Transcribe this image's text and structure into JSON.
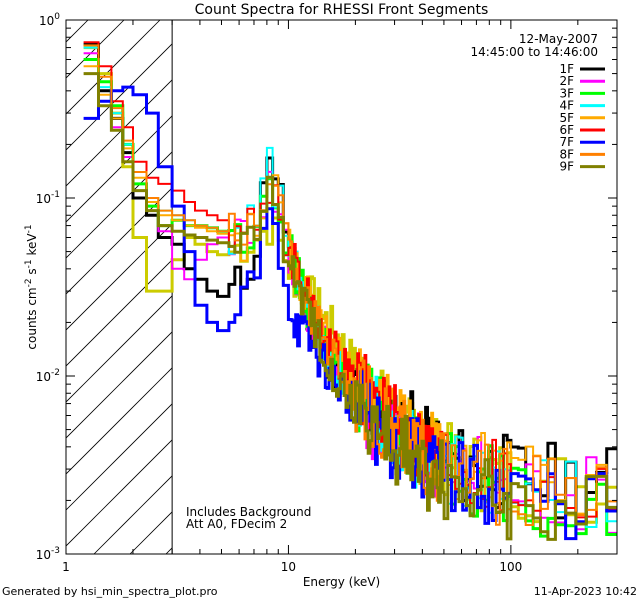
{
  "chart_data": {
    "type": "line",
    "title": "Count Spectra for RHESSI Front Segments",
    "xlabel": "Energy (keV)",
    "ylabel": {
      "base": "counts cm",
      "sup1": "-2",
      "mid": " s",
      "sup2": "-1",
      "tail": " keV",
      "sup3": "-1"
    },
    "xscale": "log",
    "yscale": "log",
    "xlim": [
      1,
      300
    ],
    "ylim": [
      0.001,
      1
    ],
    "x_ticks": [
      {
        "v": 1,
        "label": "1"
      },
      {
        "v": 10,
        "label": "10"
      },
      {
        "v": 100,
        "label": "100"
      }
    ],
    "y_ticks": [
      {
        "v": 1,
        "base": "10",
        "exp": "0"
      },
      {
        "v": 0.1,
        "base": "10",
        "exp": "-1"
      },
      {
        "v": 0.01,
        "base": "10",
        "exp": "-2"
      },
      {
        "v": 0.001,
        "base": "10",
        "exp": "-3"
      }
    ],
    "threshold_x": 3.0,
    "date": "12-May-2007",
    "time_range": "14:45:00 to 14:46:00",
    "annotation_lines": [
      "Includes Background",
      "Att A0, FDecim 2"
    ],
    "footer_left": "Generated by hsi_min_spectra_plot.pro",
    "footer_right": "11-Apr-2023 10:42",
    "line_widths": [
      3,
      2,
      3,
      2,
      2,
      2,
      3,
      2,
      3
    ],
    "series": [
      {
        "name": "1F",
        "color": "#000000",
        "values": [
          0.73,
          0.4,
          0.28,
          0.18,
          0.1,
          0.08,
          0.06,
          0.055,
          0.04,
          0.035,
          0.03,
          0.028,
          0.03,
          0.035,
          0.055,
          0.2,
          0.1,
          0.05,
          0.03,
          0.02,
          0.015,
          0.011,
          0.009,
          0.008,
          0.007,
          0.006,
          0.006,
          0.005,
          0.005,
          0.004,
          0.004,
          0.0035,
          0.003,
          0.003,
          0.0028,
          0.0025
        ]
      },
      {
        "name": "2F",
        "color": "#ff00ff",
        "values": [
          0.65,
          0.35,
          0.25,
          0.17,
          0.11,
          0.085,
          0.065,
          0.04,
          0.035,
          0.045,
          0.055,
          0.06,
          0.06,
          0.065,
          0.08,
          0.12,
          0.08,
          0.045,
          0.03,
          0.02,
          0.015,
          0.012,
          0.009,
          0.008,
          0.006,
          0.005,
          0.005,
          0.0045,
          0.004,
          0.0038,
          0.0035,
          0.003,
          0.003,
          0.0028,
          0.0024,
          0.0022
        ]
      },
      {
        "name": "3F",
        "color": "#00ff00",
        "values": [
          0.6,
          0.45,
          0.33,
          0.2,
          0.12,
          0.09,
          0.07,
          0.075,
          0.07,
          0.07,
          0.068,
          0.065,
          0.062,
          0.06,
          0.08,
          0.14,
          0.085,
          0.05,
          0.032,
          0.022,
          0.016,
          0.012,
          0.01,
          0.008,
          0.007,
          0.006,
          0.005,
          0.0045,
          0.004,
          0.0035,
          0.003,
          0.003,
          0.0028,
          0.0025,
          0.0022,
          0.002
        ]
      },
      {
        "name": "4F",
        "color": "#00ffff",
        "values": [
          0.7,
          0.42,
          0.3,
          0.2,
          0.14,
          0.1,
          0.085,
          0.08,
          0.075,
          0.07,
          0.068,
          0.065,
          0.062,
          0.06,
          0.08,
          0.15,
          0.09,
          0.05,
          0.033,
          0.022,
          0.016,
          0.012,
          0.01,
          0.008,
          0.007,
          0.006,
          0.005,
          0.0045,
          0.004,
          0.0037,
          0.0034,
          0.003,
          0.0028,
          0.0026,
          0.0024,
          0.0022
        ]
      },
      {
        "name": "5F",
        "color": "#ffaa00",
        "values": [
          0.55,
          0.38,
          0.28,
          0.19,
          0.13,
          0.095,
          0.08,
          0.075,
          0.07,
          0.068,
          0.065,
          0.063,
          0.06,
          0.058,
          0.07,
          0.13,
          0.085,
          0.05,
          0.035,
          0.025,
          0.018,
          0.014,
          0.011,
          0.009,
          0.008,
          0.007,
          0.006,
          0.005,
          0.0045,
          0.004,
          0.0037,
          0.0034,
          0.003,
          0.0028,
          0.0026,
          0.0024
        ]
      },
      {
        "name": "6F",
        "color": "#ff0000",
        "values": [
          0.75,
          0.55,
          0.35,
          0.25,
          0.16,
          0.13,
          0.12,
          0.11,
          0.095,
          0.085,
          0.08,
          0.075,
          0.07,
          0.065,
          0.075,
          0.12,
          0.08,
          0.05,
          0.035,
          0.025,
          0.018,
          0.014,
          0.011,
          0.009,
          0.008,
          0.007,
          0.006,
          0.005,
          0.0045,
          0.004,
          0.0037,
          0.0034,
          0.003,
          0.0028,
          0.0025,
          0.0022
        ]
      },
      {
        "name": "7F",
        "color": "#0000ff",
        "values": [
          0.28,
          0.35,
          0.4,
          0.42,
          0.38,
          0.3,
          0.15,
          0.09,
          0.05,
          0.025,
          0.02,
          0.018,
          0.02,
          0.025,
          0.04,
          0.08,
          0.05,
          0.025,
          0.018,
          0.015,
          0.012,
          0.01,
          0.008,
          0.007,
          0.006,
          0.005,
          0.0045,
          0.004,
          0.0037,
          0.0034,
          0.003,
          0.0028,
          0.0026,
          0.0024,
          0.0022,
          0.002
        ]
      },
      {
        "name": "8F",
        "color": "#ff8000",
        "values": [
          0.72,
          0.48,
          0.32,
          0.21,
          0.14,
          0.1,
          0.085,
          0.08,
          0.075,
          0.07,
          0.068,
          0.065,
          0.062,
          0.06,
          0.078,
          0.14,
          0.085,
          0.05,
          0.034,
          0.023,
          0.017,
          0.013,
          0.01,
          0.008,
          0.007,
          0.006,
          0.005,
          0.0045,
          0.004,
          0.0036,
          0.0033,
          0.003,
          0.0028,
          0.0025,
          0.0023,
          0.0021
        ]
      },
      {
        "name": "9F",
        "color": "#808000",
        "values": [
          0.5,
          0.33,
          0.24,
          0.16,
          0.11,
          0.085,
          0.07,
          0.065,
          0.062,
          0.06,
          0.058,
          0.056,
          0.055,
          0.054,
          0.065,
          0.11,
          0.075,
          0.045,
          0.03,
          0.02,
          0.015,
          0.011,
          0.008,
          0.007,
          0.006,
          0.005,
          0.0042,
          0.0038,
          0.0034,
          0.003,
          0.0028,
          0.0026,
          0.0024,
          0.0022,
          0.002,
          0.0018
        ]
      }
    ],
    "extra_step_series": {
      "name": "",
      "color": "#cccc00",
      "values": [
        0.7,
        0.5,
        0.3,
        0.15,
        0.06,
        0.03,
        0.03,
        0.045,
        0.06,
        0.055,
        0.05,
        0.048,
        0.05,
        0.055,
        0.06,
        0.07,
        0.055,
        0.04,
        0.032,
        0.028,
        0.022,
        0.018,
        0.014,
        0.011,
        0.009,
        0.007,
        0.006,
        0.005,
        0.0045,
        0.004,
        0.0036,
        0.0033,
        0.003,
        0.0028,
        0.0026,
        0.0024
      ]
    },
    "energy_grid": [
      1.2,
      1.4,
      1.6,
      1.8,
      2.0,
      2.3,
      2.6,
      3.0,
      3.4,
      3.8,
      4.3,
      4.8,
      5.4,
      6.1,
      7.0,
      8.0,
      9.0,
      10.0,
      11.2,
      12.6,
      14.1,
      15.8,
      17.8,
      20.0,
      22.4,
      25.1,
      28.2,
      31.6,
      35.5,
      39.8,
      44.7,
      50.1,
      63.1,
      79.4,
      100.0,
      158.5
    ]
  }
}
